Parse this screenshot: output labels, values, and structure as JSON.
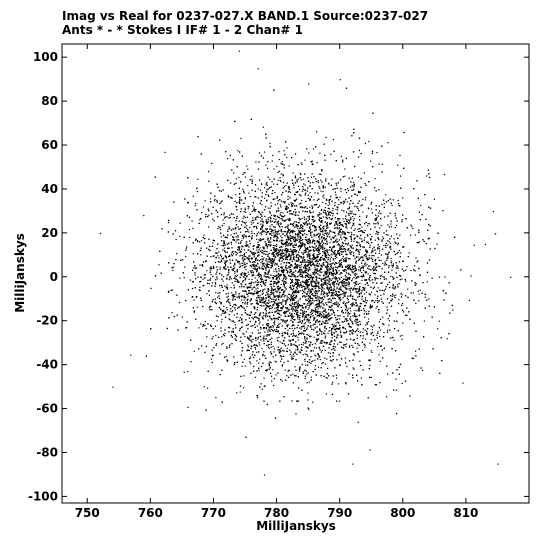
{
  "chart_data": {
    "type": "scatter",
    "title_line1": "Imag vs Real for 0237-027.X BAND.1   Source:0237-027",
    "title_line2": "Ants * - *     Stokes I  IF# 1 - 2  Chan# 1",
    "xlabel": "MilliJanskys",
    "ylabel": "MilliJanskys",
    "xlim": [
      746,
      820
    ],
    "ylim": [
      -103,
      106
    ],
    "x_ticks": [
      750,
      760,
      770,
      780,
      790,
      800,
      810
    ],
    "y_ticks": [
      -100,
      -80,
      -60,
      -40,
      -20,
      0,
      20,
      40,
      60,
      80,
      100
    ],
    "x_tick_labels": [
      "750",
      "760",
      "770",
      "780",
      "790",
      "800",
      "810"
    ],
    "y_tick_labels": [
      "-100",
      "-80",
      "-60",
      "-40",
      "-20",
      "0",
      "20",
      "40",
      "60",
      "80",
      "100"
    ],
    "grid": false,
    "point_color": "#000000",
    "distribution": {
      "center_x": 784,
      "center_y": 2,
      "sigma_x": 8,
      "sigma_y": 22,
      "count": 9000
    },
    "outliers": [
      {
        "x": 777,
        "y": 95
      },
      {
        "x": 785,
        "y": 88
      },
      {
        "x": 790,
        "y": 90
      },
      {
        "x": 774,
        "y": 103
      },
      {
        "x": 752,
        "y": 20
      },
      {
        "x": 754,
        "y": -50
      },
      {
        "x": 817,
        "y": 0
      },
      {
        "x": 815,
        "y": -85
      },
      {
        "x": 813,
        "y": 15
      },
      {
        "x": 760,
        "y": -5
      },
      {
        "x": 778,
        "y": -90
      },
      {
        "x": 792,
        "y": -85
      }
    ]
  }
}
